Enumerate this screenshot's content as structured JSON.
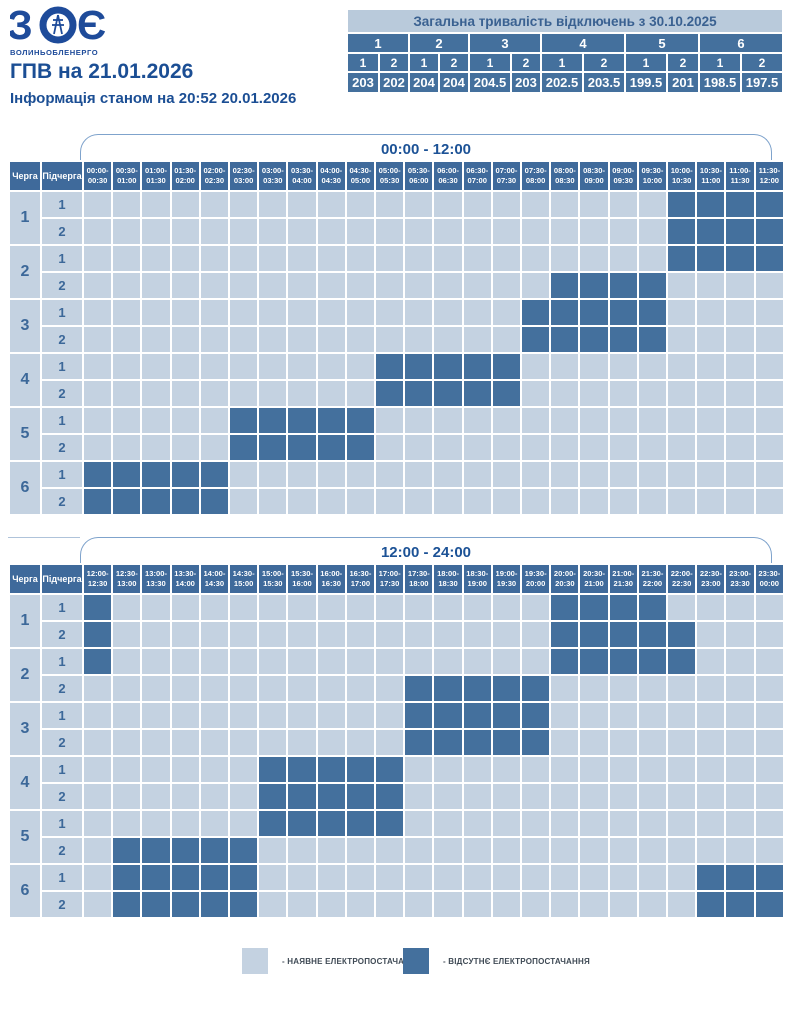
{
  "page": {
    "title": "ГПВ на 21.01.2026",
    "subtitle": "Інформація станом на 20:52 20.01.2026"
  },
  "logo": {
    "abbr": "ЗОЕ",
    "company": "ВОЛИНЬОБЛЕНЕРГО"
  },
  "summary": {
    "title": "Загальна тривалість відключень з 30.10.2025",
    "queues": [
      "1",
      "2",
      "3",
      "4",
      "5",
      "6"
    ],
    "sub_headers": [
      "1",
      "2",
      "1",
      "2",
      "1",
      "2",
      "1",
      "2",
      "1",
      "2",
      "1",
      "2"
    ],
    "values": [
      "203",
      "202",
      "204",
      "204",
      "204.5",
      "203",
      "202.5",
      "203.5",
      "199.5",
      "201",
      "198.5",
      "197.5"
    ]
  },
  "schedule": {
    "queue_header": "Черга",
    "subqueue_header": "Підчерга",
    "tables": [
      {
        "label": "00:00 - 12:00",
        "slots": [
          "00:00-00:30",
          "00:30-01:00",
          "01:00-01:30",
          "01:30-02:00",
          "02:00-02:30",
          "02:30-03:00",
          "03:00-03:30",
          "03:30-04:00",
          "04:00-04:30",
          "04:30-05:00",
          "05:00-05:30",
          "05:30-06:00",
          "06:00-06:30",
          "06:30-07:00",
          "07:00-07:30",
          "07:30-08:00",
          "08:00-08:30",
          "08:30-09:00",
          "09:00-09:30",
          "09:30-10:00",
          "10:00-10:30",
          "10:30-11:00",
          "11:00-11:30",
          "11:30-12:00"
        ],
        "rows": [
          {
            "queue": "1",
            "sub": "1",
            "outage": [
              [
                20,
                23
              ]
            ]
          },
          {
            "queue": "1",
            "sub": "2",
            "outage": [
              [
                20,
                23
              ]
            ]
          },
          {
            "queue": "2",
            "sub": "1",
            "outage": [
              [
                20,
                23
              ]
            ]
          },
          {
            "queue": "2",
            "sub": "2",
            "outage": [
              [
                16,
                19
              ]
            ]
          },
          {
            "queue": "3",
            "sub": "1",
            "outage": [
              [
                15,
                19
              ]
            ]
          },
          {
            "queue": "3",
            "sub": "2",
            "outage": [
              [
                15,
                19
              ]
            ]
          },
          {
            "queue": "4",
            "sub": "1",
            "outage": [
              [
                10,
                14
              ]
            ]
          },
          {
            "queue": "4",
            "sub": "2",
            "outage": [
              [
                10,
                14
              ]
            ]
          },
          {
            "queue": "5",
            "sub": "1",
            "outage": [
              [
                5,
                9
              ]
            ]
          },
          {
            "queue": "5",
            "sub": "2",
            "outage": [
              [
                5,
                9
              ]
            ]
          },
          {
            "queue": "6",
            "sub": "1",
            "outage": [
              [
                0,
                4
              ]
            ]
          },
          {
            "queue": "6",
            "sub": "2",
            "outage": [
              [
                0,
                4
              ]
            ]
          }
        ]
      },
      {
        "label": "12:00 - 24:00",
        "slots": [
          "12:00-12:30",
          "12:30-13:00",
          "13:00-13:30",
          "13:30-14:00",
          "14:00-14:30",
          "14:30-15:00",
          "15:00-15:30",
          "15:30-16:00",
          "16:00-16:30",
          "16:30-17:00",
          "17:00-17:30",
          "17:30-18:00",
          "18:00-18:30",
          "18:30-19:00",
          "19:00-19:30",
          "19:30-20:00",
          "20:00-20:30",
          "20:30-21:00",
          "21:00-21:30",
          "21:30-22:00",
          "22:00-22:30",
          "22:30-23:00",
          "23:00-23:30",
          "23:30-00:00"
        ],
        "rows": [
          {
            "queue": "1",
            "sub": "1",
            "outage": [
              [
                0,
                0
              ],
              [
                16,
                19
              ]
            ]
          },
          {
            "queue": "1",
            "sub": "2",
            "outage": [
              [
                0,
                0
              ],
              [
                16,
                20
              ]
            ]
          },
          {
            "queue": "2",
            "sub": "1",
            "outage": [
              [
                0,
                0
              ],
              [
                16,
                20
              ]
            ]
          },
          {
            "queue": "2",
            "sub": "2",
            "outage": [
              [
                11,
                15
              ]
            ]
          },
          {
            "queue": "3",
            "sub": "1",
            "outage": [
              [
                11,
                15
              ]
            ]
          },
          {
            "queue": "3",
            "sub": "2",
            "outage": [
              [
                11,
                15
              ]
            ]
          },
          {
            "queue": "4",
            "sub": "1",
            "outage": [
              [
                6,
                10
              ]
            ]
          },
          {
            "queue": "4",
            "sub": "2",
            "outage": [
              [
                6,
                10
              ]
            ]
          },
          {
            "queue": "5",
            "sub": "1",
            "outage": [
              [
                6,
                10
              ]
            ]
          },
          {
            "queue": "5",
            "sub": "2",
            "outage": [
              [
                1,
                5
              ]
            ]
          },
          {
            "queue": "6",
            "sub": "1",
            "outage": [
              [
                1,
                5
              ],
              [
                21,
                23
              ]
            ]
          },
          {
            "queue": "6",
            "sub": "2",
            "outage": [
              [
                1,
                5
              ],
              [
                21,
                23
              ]
            ]
          }
        ]
      }
    ]
  },
  "legend": [
    {
      "key": "available",
      "label": "- НАЯВНЕ ЕЛЕКТРОПОСТАЧАННЯ",
      "color": "#C4D2E1"
    },
    {
      "key": "outage",
      "label": "- ВІДСУТНЄ ЕЛЕКТРОПОСТАЧАННЯ",
      "color": "#44709D"
    }
  ],
  "colors": {
    "outage_cell": "#44709D",
    "available_cell": "#C4D2E1",
    "header_cell": "#3F6A9B",
    "summary_title_bg": "#B9CADB",
    "accent_text": "#1B4E94",
    "logo_blue": "#1E4B9A"
  }
}
